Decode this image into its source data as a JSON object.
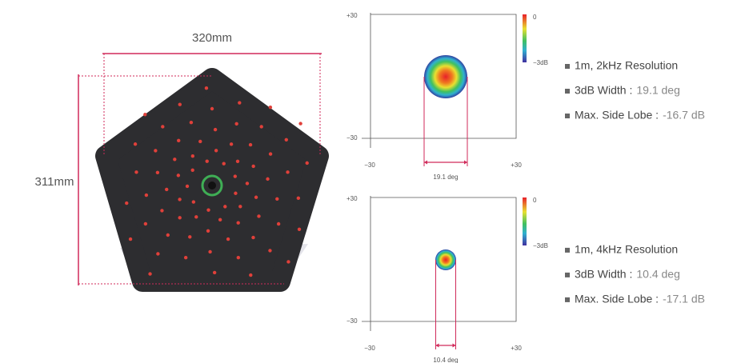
{
  "device": {
    "width_label": "320mm",
    "height_label": "311mm"
  },
  "plots": [
    {
      "y_top": "+30",
      "y_bottom": "−30",
      "x_left": "−30",
      "x_right": "+30",
      "width_label": "19.1 deg",
      "colorbar_top": "0",
      "colorbar_bottom": "−3dB",
      "specs": {
        "title": "1m, 2kHz Resolution",
        "width_key": "3dB Width :",
        "width_value": "19.1 deg",
        "lobe_key": "Max. Side Lobe :",
        "lobe_value": "-16.7 dB"
      }
    },
    {
      "y_top": "+30",
      "y_bottom": "−30",
      "x_left": "−30",
      "x_right": "+30",
      "width_label": "10.4 deg",
      "colorbar_top": "0",
      "colorbar_bottom": "−3dB",
      "specs": {
        "title": "1m, 4kHz Resolution",
        "width_key": "3dB Width :",
        "width_value": "10.4 deg",
        "lobe_key": "Max. Side Lobe :",
        "lobe_value": "-17.1 dB"
      }
    }
  ]
}
